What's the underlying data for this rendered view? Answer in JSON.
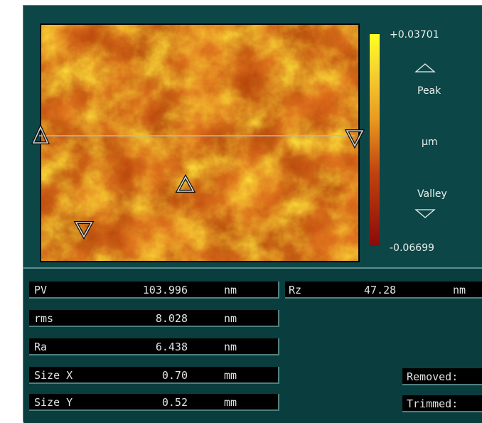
{
  "colorbar": {
    "max_label": "+0.03701",
    "peak_label": "Peak",
    "unit_label": "µm",
    "valley_label": "Valley",
    "min_label": "-0.06699",
    "max_value": 0.03701,
    "min_value": -0.06699,
    "colors": [
      "#ffff24",
      "#f7d030",
      "#ea9a20",
      "#c0440f",
      "#8c0a0a"
    ]
  },
  "map": {
    "palette": {
      "dark": "#9b2a08",
      "mid": "#d9651a",
      "light": "#f4b42a",
      "bright": "#ffe63a"
    }
  },
  "stats": {
    "pv": {
      "label": "PV",
      "value": "103.996",
      "unit": "nm"
    },
    "rms": {
      "label": "rms",
      "value": "8.028",
      "unit": "nm"
    },
    "ra": {
      "label": "Ra",
      "value": "6.438",
      "unit": "nm"
    },
    "size_x": {
      "label": "Size X",
      "value": "0.70",
      "unit": "mm"
    },
    "size_y": {
      "label": "Size Y",
      "value": "0.52",
      "unit": "mm"
    },
    "rz": {
      "label": "Rz",
      "value": "47.28",
      "unit": "nm"
    },
    "removed_label": "Removed:",
    "trimmed_label": "Trimmed:"
  },
  "colors": {
    "panel_bg": "#0d4647",
    "field_bg": "#000000",
    "field_text": "#e2e2e2",
    "marker": "#cfcfcf"
  }
}
